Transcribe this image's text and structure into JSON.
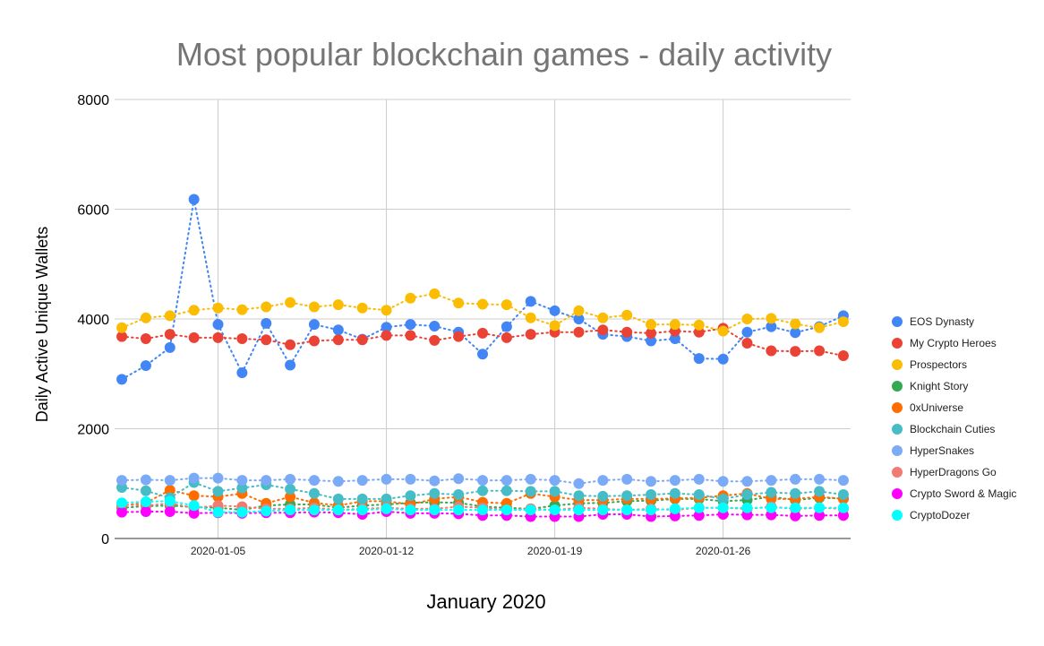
{
  "chart_data": {
    "type": "scatter",
    "title": "Most popular blockchain games - daily activity",
    "xlabel": "January 2020",
    "ylabel": "Daily Active Unique Wallets",
    "ylim": [
      0,
      8000
    ],
    "yticks": [
      "0",
      "2000",
      "4000",
      "6000",
      "8000"
    ],
    "xlim": [
      1,
      31
    ],
    "xticks": [
      {
        "label": "2020-01-05",
        "day": 5
      },
      {
        "label": "2020-01-12",
        "day": 12
      },
      {
        "label": "2020-01-19",
        "day": 19
      },
      {
        "label": "2020-01-26",
        "day": 26
      }
    ],
    "grid": true,
    "legend_position": "right",
    "line_style": "dotted",
    "x": [
      1,
      2,
      3,
      4,
      5,
      6,
      7,
      8,
      9,
      10,
      11,
      12,
      13,
      14,
      15,
      16,
      17,
      18,
      19,
      20,
      21,
      22,
      23,
      24,
      25,
      26,
      27,
      28,
      29,
      30,
      31
    ],
    "series": [
      {
        "name": "EOS Dynasty",
        "color": "#4285F4",
        "values": [
          2900,
          3150,
          3480,
          6180,
          3900,
          3020,
          3920,
          3160,
          3900,
          3800,
          3630,
          3850,
          3900,
          3870,
          3760,
          3360,
          3860,
          4320,
          4150,
          4000,
          3720,
          3680,
          3600,
          3640,
          3280,
          3270,
          3760,
          3860,
          3750,
          3860,
          4060
        ]
      },
      {
        "name": "My Crypto Heroes",
        "color": "#EA4335",
        "values": [
          3680,
          3640,
          3720,
          3660,
          3660,
          3640,
          3620,
          3530,
          3600,
          3620,
          3620,
          3700,
          3700,
          3610,
          3680,
          3740,
          3660,
          3720,
          3760,
          3760,
          3800,
          3760,
          3740,
          3780,
          3760,
          3830,
          3560,
          3420,
          3410,
          3420,
          3330
        ]
      },
      {
        "name": "Prospectors",
        "color": "#FBBC04",
        "values": [
          3840,
          4020,
          4060,
          4160,
          4200,
          4170,
          4220,
          4300,
          4220,
          4260,
          4200,
          4160,
          4380,
          4460,
          4290,
          4270,
          4260,
          4020,
          3880,
          4150,
          4020,
          4070,
          3900,
          3900,
          3890,
          3780,
          4000,
          4010,
          3910,
          3840,
          3950
        ]
      },
      {
        "name": "Knight Story",
        "color": "#34A853",
        "values": [
          560,
          590,
          600,
          570,
          560,
          520,
          600,
          620,
          620,
          560,
          600,
          620,
          650,
          660,
          650,
          580,
          560,
          540,
          600,
          640,
          650,
          680,
          690,
          720,
          720,
          680,
          700,
          760,
          700,
          740,
          730
        ]
      },
      {
        "name": "0xUniverse",
        "color": "#FF6D01",
        "values": [
          600,
          650,
          880,
          780,
          760,
          820,
          640,
          760,
          650,
          600,
          680,
          680,
          620,
          720,
          760,
          660,
          640,
          820,
          760,
          700,
          700,
          720,
          720,
          730,
          740,
          780,
          820,
          720,
          720,
          760,
          720
        ]
      },
      {
        "name": "Blockchain Cuties",
        "color": "#46BDC6",
        "values": [
          930,
          870,
          740,
          1020,
          860,
          920,
          980,
          900,
          820,
          720,
          720,
          720,
          780,
          820,
          800,
          870,
          870,
          860,
          860,
          780,
          770,
          780,
          800,
          820,
          800,
          720,
          800,
          840,
          820,
          860,
          800
        ]
      },
      {
        "name": "HyperSnakes",
        "color": "#7BAAF7",
        "values": [
          1060,
          1070,
          1060,
          1100,
          1100,
          1060,
          1060,
          1080,
          1060,
          1040,
          1060,
          1080,
          1080,
          1050,
          1090,
          1060,
          1060,
          1080,
          1060,
          1000,
          1060,
          1080,
          1040,
          1060,
          1080,
          1040,
          1040,
          1060,
          1080,
          1080,
          1060
        ]
      },
      {
        "name": "HyperDragons Go",
        "color": "#F07B72",
        "values": [
          620,
          600,
          640,
          560,
          600,
          580,
          540,
          540,
          560,
          520,
          540,
          560,
          540,
          540,
          580,
          560,
          520,
          540,
          520,
          560,
          540,
          520,
          540,
          520,
          560,
          560,
          540,
          580,
          540,
          560,
          540
        ]
      },
      {
        "name": "Crypto Sword & Magic",
        "color": "#FF00FF",
        "values": [
          480,
          490,
          490,
          460,
          470,
          460,
          470,
          470,
          480,
          470,
          440,
          490,
          460,
          460,
          450,
          420,
          420,
          400,
          400,
          400,
          440,
          440,
          400,
          410,
          420,
          440,
          430,
          430,
          410,
          420,
          420
        ]
      },
      {
        "name": "CryptoDozer",
        "color": "#00FFFF",
        "values": [
          650,
          670,
          680,
          600,
          480,
          480,
          500,
          520,
          520,
          520,
          520,
          540,
          520,
          520,
          520,
          520,
          520,
          520,
          520,
          520,
          520,
          520,
          520,
          540,
          560,
          560,
          560,
          560,
          560,
          560,
          560
        ]
      }
    ]
  }
}
